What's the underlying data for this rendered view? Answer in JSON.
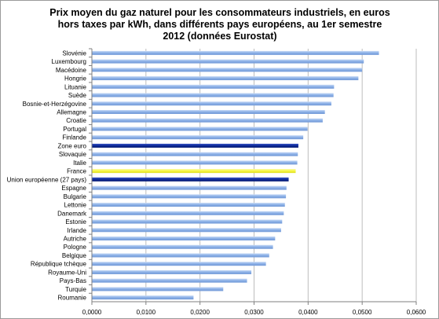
{
  "chart_data": {
    "type": "bar",
    "orientation": "horizontal",
    "title": "Prix moyen du gaz naturel pour les consommateurs industriels, en euros hors taxes par kWh, dans différents pays européens, au 1er semestre 2012 (données Eurostat)",
    "xlabel": "",
    "ylabel": "",
    "xlim": [
      0,
      0.06
    ],
    "x_ticks": [
      "0,0000",
      "0,0100",
      "0,0200",
      "0,0300",
      "0,0400",
      "0,0500",
      "0,0600"
    ],
    "grid": "vertical",
    "legend": "none",
    "categories": [
      "Slovénie",
      "Luxembourg",
      "Macédoine",
      "Hongrie",
      "Lituanie",
      "Suède",
      "Bosnie-et-Herzégovine",
      "Allemagne",
      "Croatie",
      "Portugal",
      "Finlande",
      "Zone euro",
      "Slovaquie",
      "Italie",
      "France",
      "Union européenne (27 pays)",
      "Espagne",
      "Bulgarie",
      "Lettonie",
      "Danemark",
      "Estonie",
      "Irlande",
      "Autriche",
      "Pologne",
      "Belgique",
      "République tchèque",
      "Royaume-Uni",
      "Pays-Bas",
      "Turquie",
      "Roumanie"
    ],
    "values": [
      0.0531,
      0.0503,
      0.05,
      0.0493,
      0.0448,
      0.0447,
      0.0443,
      0.0431,
      0.0427,
      0.0399,
      0.0391,
      0.0382,
      0.0381,
      0.038,
      0.0377,
      0.0364,
      0.036,
      0.0359,
      0.0357,
      0.0355,
      0.0352,
      0.035,
      0.0339,
      0.0335,
      0.0328,
      0.0322,
      0.0295,
      0.0287,
      0.0243,
      0.0188
    ],
    "colors": {
      "default": "#8fb3e8",
      "highlight_dark": "#0d2a99",
      "highlight_france": "#f5f542",
      "grid": "#bdbdbd",
      "axis": "#7f7f7f"
    },
    "highlights": {
      "Zone euro": "highlight_dark",
      "Union européenne (27 pays)": "highlight_dark",
      "France": "highlight_france"
    }
  }
}
